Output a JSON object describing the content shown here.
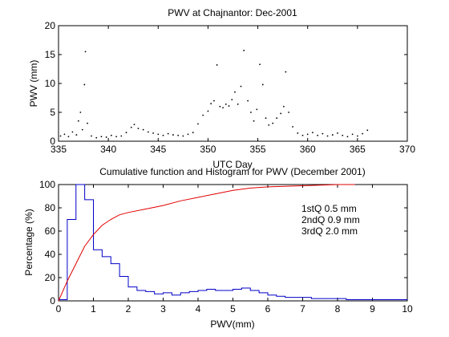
{
  "chart_data": [
    {
      "type": "scatter",
      "title": "PWV at Chajnantor: Dec-2001",
      "xlabel": "UTC Day",
      "ylabel": "PWV (mm)",
      "xlim": [
        335,
        370
      ],
      "ylim": [
        0,
        20
      ],
      "xticks": [
        335,
        340,
        345,
        350,
        355,
        360,
        365,
        370
      ],
      "yticks": [
        0,
        5,
        10,
        15,
        20
      ],
      "grid": false,
      "series": [
        {
          "color": "#000000",
          "points": [
            [
              335.2,
              0.9
            ],
            [
              335.6,
              1.2
            ],
            [
              336.0,
              0.8
            ],
            [
              336.4,
              1.6
            ],
            [
              336.8,
              1.1
            ],
            [
              337.0,
              3.5
            ],
            [
              337.2,
              5.0
            ],
            [
              337.4,
              2.0
            ],
            [
              337.6,
              9.8
            ],
            [
              337.7,
              15.5
            ],
            [
              337.9,
              3.1
            ],
            [
              338.3,
              0.9
            ],
            [
              338.8,
              0.6
            ],
            [
              339.3,
              0.8
            ],
            [
              339.8,
              0.7
            ],
            [
              340.3,
              1.0
            ],
            [
              340.8,
              0.8
            ],
            [
              341.3,
              0.9
            ],
            [
              341.8,
              1.5
            ],
            [
              342.3,
              2.4
            ],
            [
              342.6,
              2.9
            ],
            [
              343.0,
              2.2
            ],
            [
              343.5,
              2.0
            ],
            [
              344.0,
              1.6
            ],
            [
              344.5,
              1.4
            ],
            [
              345.0,
              1.2
            ],
            [
              345.5,
              1.0
            ],
            [
              346.0,
              1.3
            ],
            [
              346.5,
              1.1
            ],
            [
              347.0,
              1.0
            ],
            [
              347.5,
              0.9
            ],
            [
              348.0,
              1.2
            ],
            [
              348.5,
              1.5
            ],
            [
              349.0,
              3.0
            ],
            [
              349.5,
              4.5
            ],
            [
              350.0,
              5.2
            ],
            [
              350.3,
              6.5
            ],
            [
              350.6,
              7.0
            ],
            [
              350.9,
              13.2
            ],
            [
              351.2,
              6.0
            ],
            [
              351.5,
              5.8
            ],
            [
              351.8,
              6.4
            ],
            [
              352.1,
              6.1
            ],
            [
              352.4,
              7.2
            ],
            [
              352.7,
              8.5
            ],
            [
              353.0,
              6.4
            ],
            [
              353.3,
              9.5
            ],
            [
              353.6,
              15.7
            ],
            [
              354.0,
              7.0
            ],
            [
              354.3,
              5.0
            ],
            [
              354.6,
              3.5
            ],
            [
              354.9,
              5.5
            ],
            [
              355.2,
              13.3
            ],
            [
              355.5,
              9.8
            ],
            [
              355.8,
              4.0
            ],
            [
              356.1,
              2.8
            ],
            [
              356.5,
              3.1
            ],
            [
              356.9,
              4.0
            ],
            [
              357.3,
              4.8
            ],
            [
              357.6,
              6.0
            ],
            [
              357.8,
              12.0
            ],
            [
              358.1,
              5.0
            ],
            [
              358.5,
              2.5
            ],
            [
              359.0,
              1.4
            ],
            [
              359.5,
              1.0
            ],
            [
              360.0,
              1.2
            ],
            [
              360.5,
              1.5
            ],
            [
              361.0,
              1.0
            ],
            [
              361.5,
              1.3
            ],
            [
              362.0,
              0.9
            ],
            [
              362.5,
              1.1
            ],
            [
              363.0,
              1.4
            ],
            [
              363.5,
              1.0
            ],
            [
              364.0,
              0.8
            ],
            [
              364.5,
              1.2
            ],
            [
              365.0,
              0.9
            ],
            [
              365.5,
              1.3
            ],
            [
              366.0,
              1.9
            ]
          ]
        }
      ]
    },
    {
      "type": "bar",
      "title": "Cumulative function and Histogram for PWV (December 2001)",
      "xlabel": "PWV(mm)",
      "ylabel": "Percentage (%)",
      "xlim": [
        0,
        10
      ],
      "ylim": [
        0,
        100
      ],
      "xticks": [
        0,
        1,
        2,
        3,
        4,
        5,
        6,
        7,
        8,
        9,
        10
      ],
      "yticks": [
        0,
        20,
        40,
        60,
        80,
        100
      ],
      "grid": false,
      "annotations": [
        "1stQ 0.5 mm",
        "2ndQ 0.9 mm",
        "3rdQ 2.0 mm"
      ],
      "annotation_color": "#e00000",
      "series": [
        {
          "kind": "stairs",
          "color": "#0000c8",
          "bin_width": 0.25,
          "bin_start": 0,
          "values": [
            1,
            70,
            100,
            87,
            44,
            38,
            32,
            21,
            12,
            9,
            8,
            6,
            7,
            5,
            7,
            8,
            9,
            10,
            9,
            9,
            10,
            11,
            9,
            7,
            5,
            4,
            3,
            3,
            3,
            2,
            2,
            2,
            2,
            1,
            1,
            1,
            1,
            1,
            1,
            1
          ]
        },
        {
          "kind": "line",
          "color": "#e00000",
          "x": [
            0,
            0.25,
            0.5,
            0.75,
            1.0,
            1.25,
            1.5,
            1.75,
            2.0,
            2.5,
            3.0,
            3.5,
            4.0,
            4.5,
            5.0,
            5.5,
            6.0,
            7.0,
            8.0,
            8.5
          ],
          "y": [
            0,
            17,
            32,
            47,
            57,
            65,
            70,
            74,
            76,
            79,
            82,
            86,
            89,
            92,
            95,
            97,
            98,
            99,
            100,
            100
          ]
        }
      ]
    }
  ]
}
